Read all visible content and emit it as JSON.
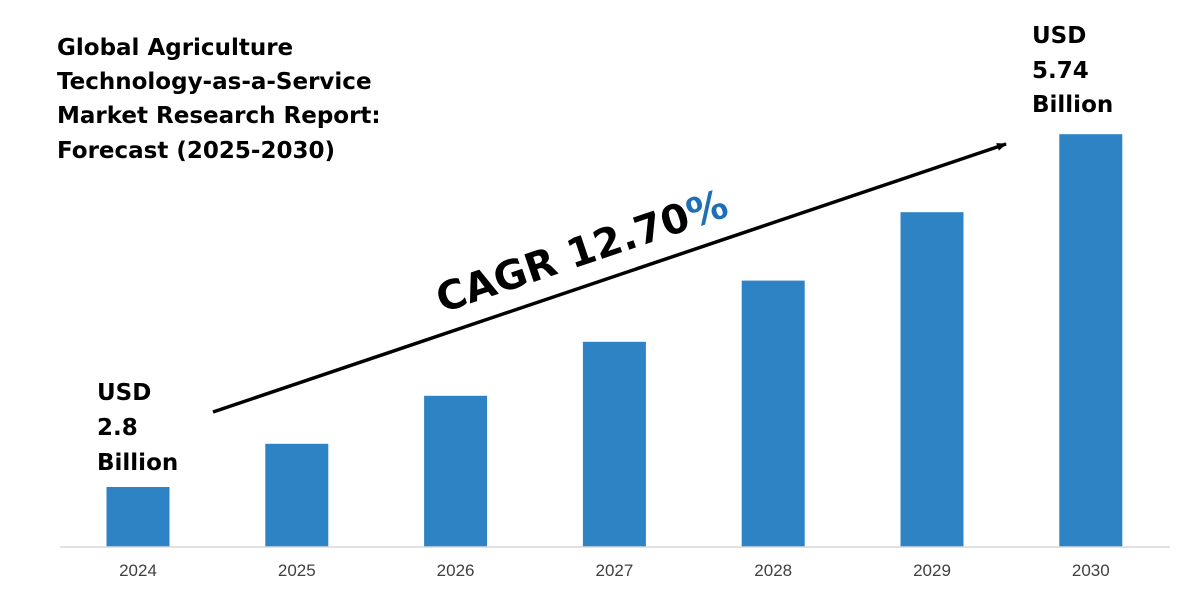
{
  "chart_data": {
    "type": "bar",
    "title_lines": [
      "Global Agriculture",
      "Technology-as-a-Service",
      "Market Research Report:",
      "Forecast (2025-2030)"
    ],
    "categories": [
      "2024",
      "2025",
      "2026",
      "2027",
      "2028",
      "2029",
      "2030"
    ],
    "values": [
      2.8,
      3.16,
      3.56,
      4.01,
      4.52,
      5.09,
      5.74
    ],
    "bar_color": "#2E83C5",
    "start_label": [
      "USD",
      "2.8",
      "Billion"
    ],
    "end_label": [
      "USD",
      "5.74",
      "Billion"
    ],
    "cagr": {
      "text": "CAGR 12.70",
      "suffix": "%",
      "text_color": "#000000",
      "suffix_color": "#1F6FB8"
    },
    "grid": false
  }
}
